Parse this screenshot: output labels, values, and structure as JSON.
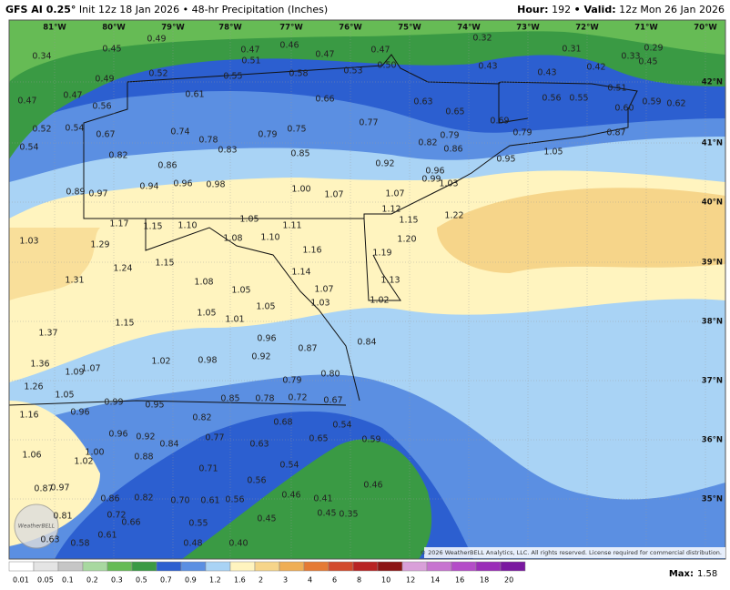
{
  "header": {
    "title": "GFS AI 0.25°",
    "subtitle": "Init 12z 18 Jan 2026 • 48-hr Precipitation (Inches)",
    "hour_label": "Hour:",
    "hour": 192,
    "valid_label": "• Valid:",
    "valid": "12z Mon 26 Jan 2026"
  },
  "map": {
    "longitudes": [
      "81°W",
      "80°W",
      "79°W",
      "78°W",
      "77°W",
      "76°W",
      "75°W",
      "74°W",
      "73°W",
      "72°W",
      "71°W",
      "70°W"
    ],
    "latitudes": [
      "42°N",
      "41°N",
      "40°N",
      "39°N",
      "38°N",
      "37°N",
      "36°N",
      "35°N"
    ],
    "precip_labels": [
      "0.49",
      "0.45",
      "0.34",
      "0.47",
      "0.46",
      "0.47",
      "0.47",
      "0.32",
      "0.31",
      "0.29",
      "0.51",
      "0.50",
      "0.33",
      "0.52",
      "0.55",
      "0.58",
      "0.53",
      "0.43",
      "0.43",
      "0.42",
      "0.45",
      "0.49",
      "0.47",
      "0.47",
      "0.61",
      "0.66",
      "0.63",
      "0.56",
      "0.55",
      "0.51",
      "0.56",
      "0.65",
      "0.60",
      "0.59",
      "0.62",
      "0.77",
      "0.69",
      "0.54",
      "0.52",
      "0.67",
      "0.74",
      "0.78",
      "0.79",
      "0.75",
      "0.79",
      "0.87",
      "0.79",
      "0.54",
      "0.83",
      "0.82",
      "0.86",
      "0.82",
      "0.85",
      "1.05",
      "0.95",
      "0.86",
      "0.92",
      "0.96",
      "0.99",
      "1.03",
      "0.94",
      "0.96",
      "0.98",
      "1.00",
      "1.07",
      "1.07",
      "0.89",
      "0.97",
      "1.12",
      "1.15",
      "1.22",
      "1.17",
      "1.15",
      "1.10",
      "1.05",
      "1.11",
      "1.08",
      "1.10",
      "1.20",
      "1.03",
      "1.29",
      "1.16",
      "1.19",
      "1.15",
      "1.24",
      "1.14",
      "1.13",
      "1.31",
      "1.08",
      "1.07",
      "1.05",
      "1.02",
      "1.03",
      "1.05",
      "1.05",
      "1.01",
      "1.15",
      "1.37",
      "0.96",
      "0.87",
      "0.84",
      "0.92",
      "0.98",
      "1.02",
      "1.36",
      "1.09",
      "1.07",
      "0.80",
      "0.79",
      "1.26",
      "1.05",
      "0.85",
      "0.78",
      "0.72",
      "0.67",
      "0.99",
      "0.95",
      "0.96",
      "1.16",
      "0.82",
      "0.68",
      "0.54",
      "0.96",
      "0.92",
      "0.77",
      "0.65",
      "0.59",
      "0.84",
      "0.63",
      "1.00",
      "1.06",
      "0.88",
      "1.02",
      "0.54",
      "0.71",
      "0.56",
      "0.46",
      "0.97",
      "0.87",
      "0.46",
      "0.41",
      "0.86",
      "0.82",
      "0.70",
      "0.61",
      "0.56",
      "0.72",
      "0.81",
      "0.45",
      "0.35",
      "0.66",
      "0.45",
      "0.55",
      "0.61",
      "0.63",
      "0.58",
      "0.48",
      "0.40"
    ]
  },
  "legend": {
    "levels": [
      0.01,
      0.05,
      0.1,
      0.2,
      0.3,
      0.5,
      0.7,
      0.9,
      1.2,
      1.6,
      2,
      3,
      4,
      6,
      8,
      10,
      12,
      14,
      16,
      18,
      20
    ],
    "colors": [
      "#ffffff",
      "#e4e4e4",
      "#c6c6c6",
      "#a8d8a0",
      "#66bb55",
      "#3a9a44",
      "#2c5fd0",
      "#5b8fe2",
      "#a9d3f5",
      "#fff4bf",
      "#f6d58a",
      "#efae55",
      "#e57a34",
      "#d24a2c",
      "#b82424",
      "#8c1414",
      "#d9a0d9",
      "#c774d0",
      "#b44cc8",
      "#9a2cb8",
      "#7a18a0"
    ],
    "max_label": "Max:",
    "max": 1.58
  },
  "credit": "© 2026 WeatherBELL Analytics, LLC. All rights reserved. License required for commercial distribution.",
  "logo": "WeatherBELL"
}
